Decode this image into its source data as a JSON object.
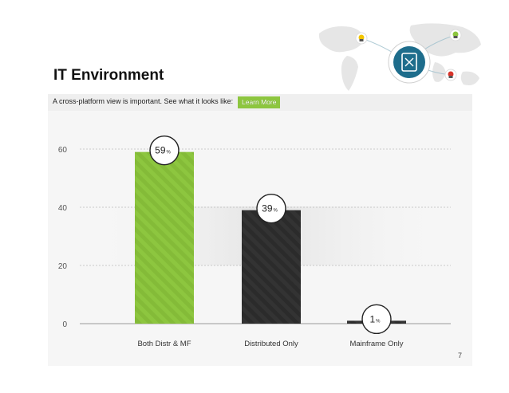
{
  "slide": {
    "title": "IT Environment",
    "subtitle": "A cross-platform view is important. See what it looks like:",
    "learn_more_label": "Learn More",
    "page_number": "7",
    "map_icon": "network-map-icon"
  },
  "colors": {
    "green": "#8dc63f",
    "dark": "#333333",
    "accent_teal": "#1e6d8c",
    "grid": "#bbbbbb"
  },
  "chart_data": {
    "type": "bar",
    "categories": [
      "Both Distr & MF",
      "Distributed Only",
      "Mainframe Only"
    ],
    "values": [
      59,
      39,
      1
    ],
    "value_labels": [
      "59",
      "39",
      "1"
    ],
    "value_unit": "%",
    "bar_colors": [
      "#8dc63f",
      "#333333",
      "#333333"
    ],
    "ylim": [
      0,
      60
    ],
    "yticks": [
      "0",
      "20",
      "40",
      "60"
    ],
    "ytick_values": [
      0,
      20,
      40,
      60
    ],
    "title": "",
    "xlabel": "",
    "ylabel": "",
    "grid": true,
    "legend": "none"
  }
}
